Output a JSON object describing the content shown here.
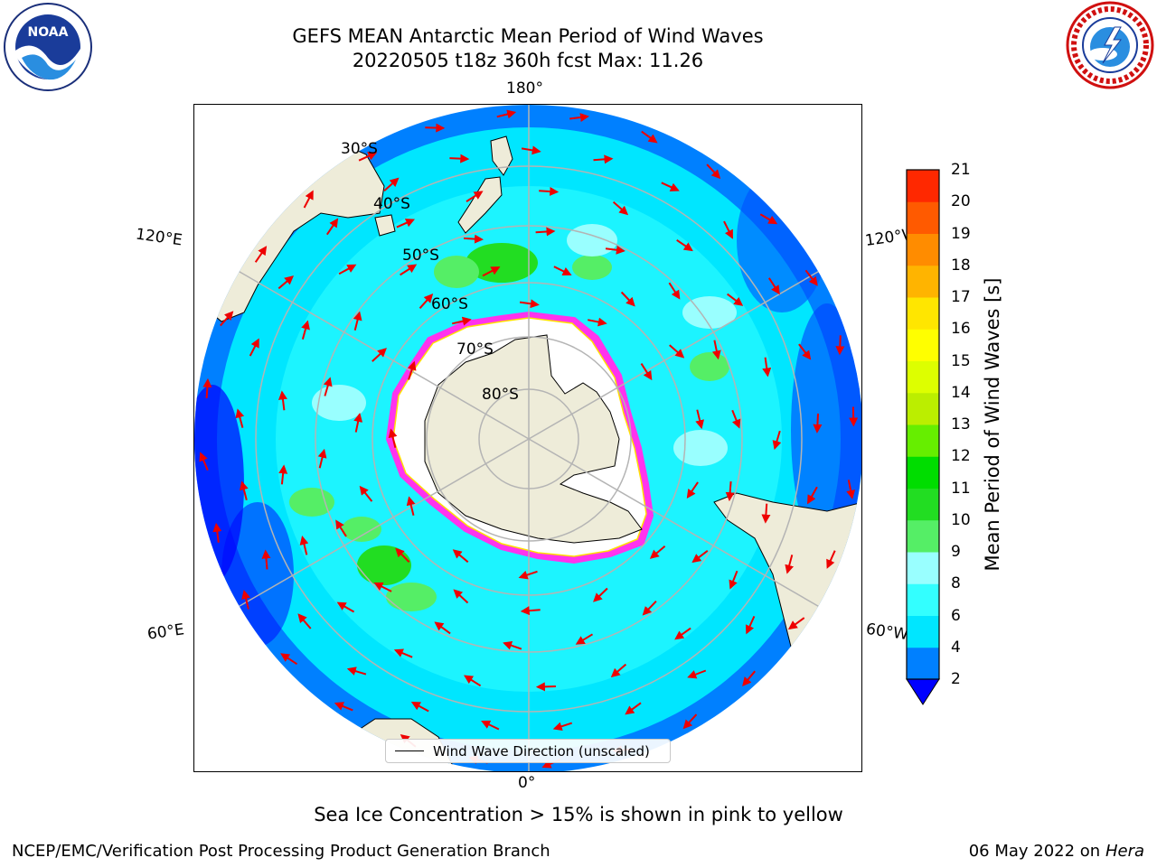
{
  "title": {
    "line1": "GEFS MEAN Antarctic Mean Period of Wind Waves",
    "line2": "20220505 t18z 360h fcst   Max: 11.26"
  },
  "map": {
    "projection": "south-polar-stereographic",
    "longitude_labels": {
      "top": "180°",
      "upper_left": "120°E",
      "upper_right": "120°W",
      "lower_left": "60°E",
      "lower_right": "60°W",
      "bottom": "0°"
    },
    "latitude_labels": [
      "30°S",
      "40°S",
      "50°S",
      "60°S",
      "70°S",
      "80°S"
    ],
    "colors": {
      "land": "#eeecd9",
      "ice": "#ffffff",
      "ice_edge": "#ff33ee",
      "arrow": "#ee0000",
      "grid": "#b4b4b4",
      "wave_period_2_4": "#0080ff",
      "wave_period_4_6": "#00e6ff",
      "wave_period_6_8": "#33ffff",
      "wave_period_8_9": "#99ffff",
      "wave_period_9_10": "#55ee66",
      "wave_period_10_11": "#22dd22"
    }
  },
  "legend": {
    "label": "Wind Wave Direction (unscaled)"
  },
  "colorbar": {
    "label": "Mean Period of Wind Waves [s]",
    "ticks": [
      "2",
      "4",
      "6",
      "8",
      "9",
      "10",
      "11",
      "12",
      "13",
      "14",
      "15",
      "16",
      "17",
      "18",
      "19",
      "20",
      "21"
    ],
    "colors": [
      "#0080ff",
      "#00e6ff",
      "#33ffff",
      "#99ffff",
      "#55ee66",
      "#22dd22",
      "#00dd00",
      "#66ee00",
      "#bbee00",
      "#ddff00",
      "#ffff00",
      "#ffe600",
      "#ffb400",
      "#ff8c00",
      "#ff5a00",
      "#ff2800",
      "#ff0000"
    ],
    "underflow_color": "#0000ff"
  },
  "subtitle": "Sea Ice Concentration > 15% is shown in pink to yellow",
  "footer": {
    "left": "NCEP/EMC/Verification Post Processing Product Generation Branch",
    "date": "06 May 2022 on",
    "host": "Hera"
  },
  "logos": {
    "noaa": "NOAA",
    "nws_icon": "nws-logo-icon"
  }
}
